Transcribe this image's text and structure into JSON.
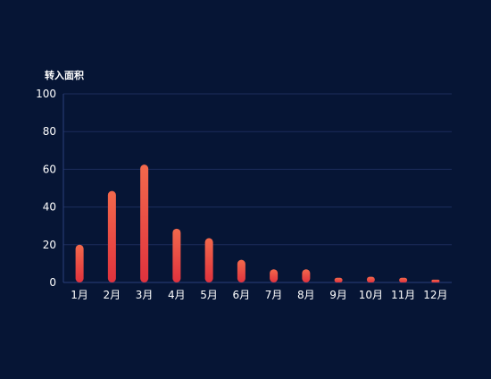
{
  "chart_data": {
    "type": "bar",
    "ylabel": "转入面积",
    "categories": [
      "1月",
      "2月",
      "3月",
      "4月",
      "5月",
      "6月",
      "7月",
      "8月",
      "9月",
      "10月",
      "11月",
      "12月"
    ],
    "values": [
      20,
      48.5,
      62.5,
      28.5,
      23.5,
      12,
      7,
      7,
      2.5,
      3,
      2.5,
      1.5
    ],
    "ylim": [
      0,
      100
    ],
    "yticks": [
      0,
      20,
      40,
      60,
      80,
      100
    ],
    "grid": true,
    "colors": {
      "background": "#061535",
      "bar_top": "#f3694c",
      "bar_bottom": "#e0323d",
      "grid": "#1c2d5c",
      "axis": "#2a3f7a",
      "text": "#ffffff"
    }
  }
}
